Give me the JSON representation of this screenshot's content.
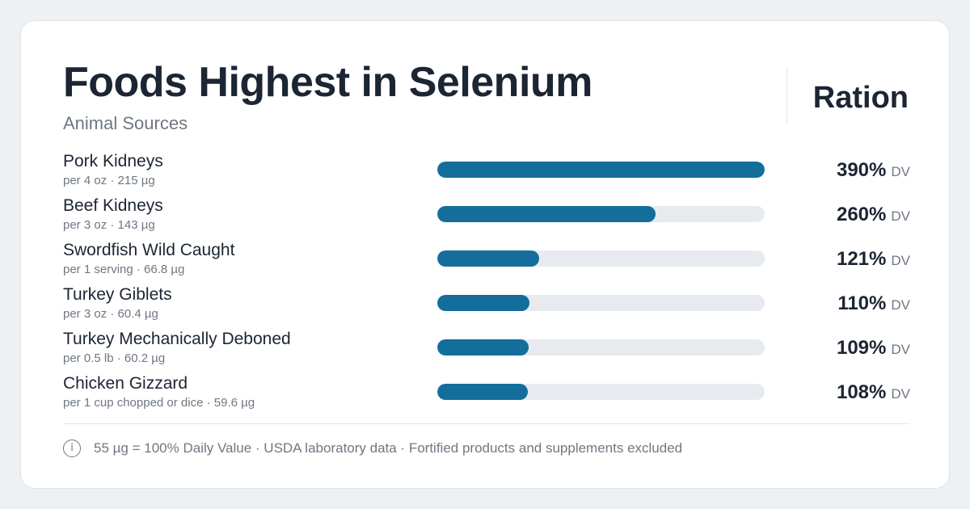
{
  "brand": "Ration",
  "chart_data": {
    "type": "bar",
    "title": "Foods Highest in Selenium",
    "subtitle": "Animal Sources",
    "value_suffix": "DV",
    "items": [
      {
        "name": "Pork Kidneys",
        "detail": "per 4 oz · 215 µg",
        "value": 390,
        "label": "390%"
      },
      {
        "name": "Beef Kidneys",
        "detail": "per 3 oz · 143 µg",
        "value": 260,
        "label": "260%"
      },
      {
        "name": "Swordfish Wild Caught",
        "detail": "per 1 serving · 66.8 µg",
        "value": 121,
        "label": "121%"
      },
      {
        "name": "Turkey Giblets",
        "detail": "per 3 oz · 60.4 µg",
        "value": 110,
        "label": "110%"
      },
      {
        "name": "Turkey Mechanically Deboned",
        "detail": "per 0.5 lb · 60.2 µg",
        "value": 109,
        "label": "109%"
      },
      {
        "name": "Chicken Gizzard",
        "detail": "per 1 cup chopped or dice · 59.6 µg",
        "value": 108,
        "label": "108%"
      }
    ],
    "xlim": [
      0,
      390
    ],
    "colors": {
      "bar": "#136e9c",
      "track": "#e7ebf0"
    }
  },
  "footnote": "55 µg = 100% Daily Value · USDA laboratory data · Fortified products and supplements excluded",
  "info_icon": "info-icon",
  "info_glyph": "i"
}
